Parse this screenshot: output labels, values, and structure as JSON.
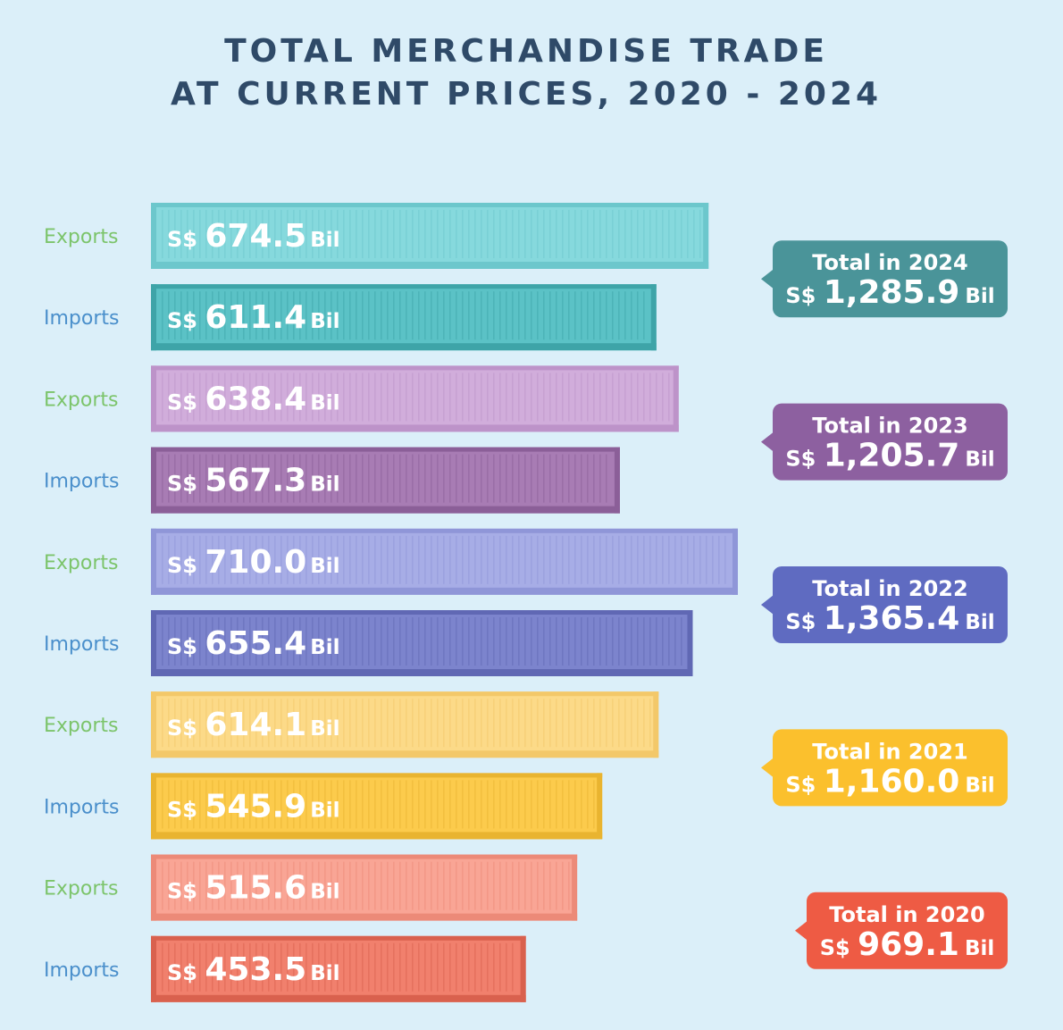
{
  "chart_data": {
    "type": "bar",
    "orientation": "horizontal",
    "title_line1": "TOTAL MERCHANDISE TRADE",
    "title_line2": "AT CURRENT PRICES, 2020 - 2024",
    "currency": "S$",
    "unit": "Bil",
    "series_labels": {
      "exports": "Exports",
      "imports": "Imports"
    },
    "label_colors": {
      "exports": "#7cc46b",
      "imports": "#4a8fcb"
    },
    "groups": [
      {
        "year": "2024",
        "total_label": "Total in 2024",
        "total": "1,285.9",
        "exports": 674.5,
        "imports": 611.4,
        "exports_text": "674.5",
        "imports_text": "611.4",
        "colors": {
          "exports": "#86d9dd",
          "exports_dark": "#6cc7cc",
          "imports": "#5bc2c6",
          "imports_dark": "#3ea4a8",
          "badge": "#4a9499"
        }
      },
      {
        "year": "2023",
        "total_label": "Total in 2023",
        "total": "1,205.7",
        "exports": 638.4,
        "imports": 567.3,
        "exports_text": "638.4",
        "imports_text": "567.3",
        "colors": {
          "exports": "#d1addb",
          "exports_dark": "#bd93c9",
          "imports": "#a87cb4",
          "imports_dark": "#8b5f98",
          "badge": "#8d60a0"
        }
      },
      {
        "year": "2022",
        "total_label": "Total in 2022",
        "total": "1,365.4",
        "exports": 710.0,
        "imports": 655.4,
        "exports_text": "710.0",
        "imports_text": "655.4",
        "colors": {
          "exports": "#a7ade6",
          "exports_dark": "#8f96d8",
          "imports": "#7c84cd",
          "imports_dark": "#6068b4",
          "badge": "#5f6bc1"
        }
      },
      {
        "year": "2021",
        "total_label": "Total in 2021",
        "total": "1,160.0",
        "exports": 614.1,
        "imports": 545.9,
        "exports_text": "614.1",
        "imports_text": "545.9",
        "colors": {
          "exports": "#fcda88",
          "exports_dark": "#f3c869",
          "imports": "#fccb4c",
          "imports_dark": "#e9b430",
          "badge": "#fbc02d"
        }
      },
      {
        "year": "2020",
        "total_label": "Total in 2020",
        "total": "969.1",
        "exports": 515.6,
        "imports": 453.5,
        "exports_text": "515.6",
        "imports_text": "453.5",
        "colors": {
          "exports": "#f9a595",
          "exports_dark": "#ec8a78",
          "imports": "#f1806d",
          "imports_dark": "#d9614e",
          "badge": "#ee5b44"
        }
      }
    ],
    "xlabel": "",
    "ylabel": "",
    "grid": false
  }
}
